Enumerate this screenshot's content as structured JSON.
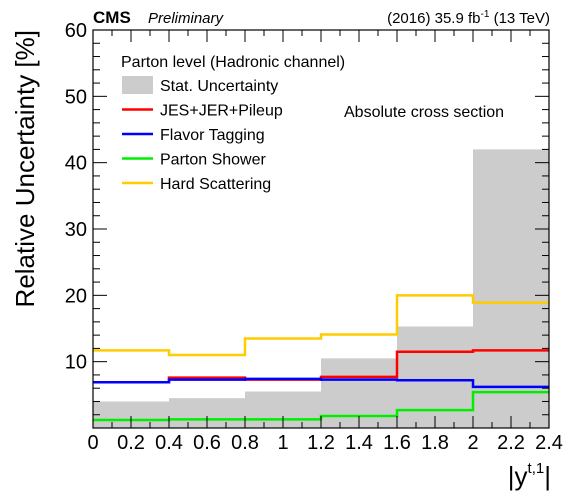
{
  "header": {
    "experiment": "CMS",
    "status": "Preliminary",
    "lumi_prefix": "(2016) 35.9 fb",
    "lumi_exp": "-1",
    "lumi_suffix": " (13 TeV)"
  },
  "chart_data": {
    "type": "line",
    "step": true,
    "title": "",
    "ylabel": "Relative Uncertainty [%]",
    "xlabel": "|y",
    "xlabel_sup": "t,1",
    "xlabel_close": "|",
    "xlim": [
      0,
      2.4
    ],
    "ylim": [
      0,
      60
    ],
    "x_ticks": [
      "0",
      "0.2",
      "0.4",
      "0.6",
      "0.8",
      "1",
      "1.2",
      "1.4",
      "1.6",
      "1.8",
      "2",
      "2.2",
      "2.4"
    ],
    "y_ticks": [
      "10",
      "20",
      "30",
      "40",
      "50",
      "60"
    ],
    "bin_edges": [
      0,
      0.4,
      0.8,
      1.2,
      1.6,
      2.0,
      2.4
    ],
    "legend_title": "Parton level (Hadronic channel)",
    "legend_position": "top-left",
    "annotation": "Absolute cross section",
    "stat": {
      "name": "Stat. Uncertainty",
      "color": "#cccccc",
      "values": [
        4.0,
        4.5,
        5.5,
        10.5,
        15.3,
        42.0
      ]
    },
    "series": [
      {
        "name": "JES+JER+Pileup",
        "color": "#ff0000",
        "values": [
          6.9,
          7.6,
          7.3,
          7.7,
          11.5,
          11.7
        ]
      },
      {
        "name": "Flavor Tagging",
        "color": "#0000ff",
        "values": [
          6.9,
          7.3,
          7.4,
          7.3,
          7.2,
          6.2
        ]
      },
      {
        "name": "Parton Shower",
        "color": "#00ee00",
        "values": [
          1.2,
          1.3,
          1.3,
          1.8,
          2.7,
          5.4
        ]
      },
      {
        "name": "Hard Scattering",
        "color": "#ffcc00",
        "values": [
          11.7,
          11.0,
          13.5,
          14.1,
          20.0,
          18.9
        ]
      }
    ]
  }
}
